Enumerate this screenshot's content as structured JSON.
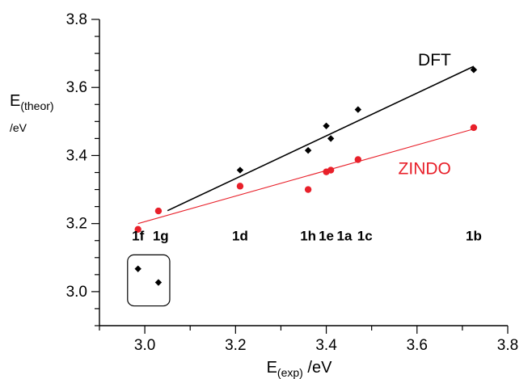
{
  "chart_data": {
    "type": "scatter",
    "xlabel": {
      "main": "E",
      "sub": "(exp)",
      "unit": " /eV"
    },
    "ylabel": {
      "main": "E",
      "sub": "(theor)",
      "unit": "/eV"
    },
    "xlim": [
      2.9,
      3.8
    ],
    "ylim": [
      2.9,
      3.8
    ],
    "x_ticks": [
      3.0,
      3.2,
      3.4,
      3.6,
      3.8
    ],
    "x_tick_labels": [
      "3.0",
      "3.2",
      "3.4",
      "3.6",
      "3.8"
    ],
    "y_ticks": [
      3.0,
      3.2,
      3.4,
      3.6,
      3.8
    ],
    "y_tick_labels": [
      "3.0",
      "3.2",
      "3.4",
      "3.6",
      "3.8"
    ],
    "grid": false,
    "series": [
      {
        "name": "DFT",
        "color": "#000000",
        "marker": "diamond",
        "x": [
          3.21,
          3.36,
          3.4,
          3.41,
          3.47,
          3.725
        ],
        "y": [
          3.357,
          3.415,
          3.487,
          3.45,
          3.535,
          3.652
        ],
        "fit": {
          "x": [
            3.05,
            3.725
          ],
          "y": [
            3.238,
            3.662
          ]
        }
      },
      {
        "name": "ZINDO",
        "color": "#e8202a",
        "marker": "circle",
        "x": [
          2.985,
          3.03,
          3.21,
          3.36,
          3.4,
          3.41,
          3.47,
          3.725
        ],
        "y": [
          3.183,
          3.237,
          3.31,
          3.3,
          3.352,
          3.357,
          3.388,
          3.482
        ],
        "fit": {
          "x": [
            2.985,
            3.725
          ],
          "y": [
            3.2,
            3.478
          ]
        }
      },
      {
        "name": "",
        "color": "#000000",
        "marker": "diamond",
        "x": [
          2.985,
          3.03
        ],
        "y": [
          3.067,
          3.027
        ]
      }
    ],
    "outlier_box": {
      "x": [
        2.962,
        3.055
      ],
      "y": [
        2.958,
        3.108
      ]
    },
    "compound_labels": [
      {
        "text": "1f",
        "x": 2.985
      },
      {
        "text": "1g",
        "x": 3.035
      },
      {
        "text": "1d",
        "x": 3.21
      },
      {
        "text": "1h",
        "x": 3.36
      },
      {
        "text": "1e",
        "x": 3.4
      },
      {
        "text": "1a",
        "x": 3.44
      },
      {
        "text": "1c",
        "x": 3.485
      },
      {
        "text": "1b",
        "x": 3.725
      }
    ],
    "compound_label_y": 3.15,
    "series_labels": [
      {
        "text": "DFT",
        "x": 3.675,
        "y": 3.665,
        "color": "#000000"
      },
      {
        "text": "ZINDO",
        "x": 3.675,
        "y": 3.345,
        "color": "#e8202a"
      }
    ]
  }
}
